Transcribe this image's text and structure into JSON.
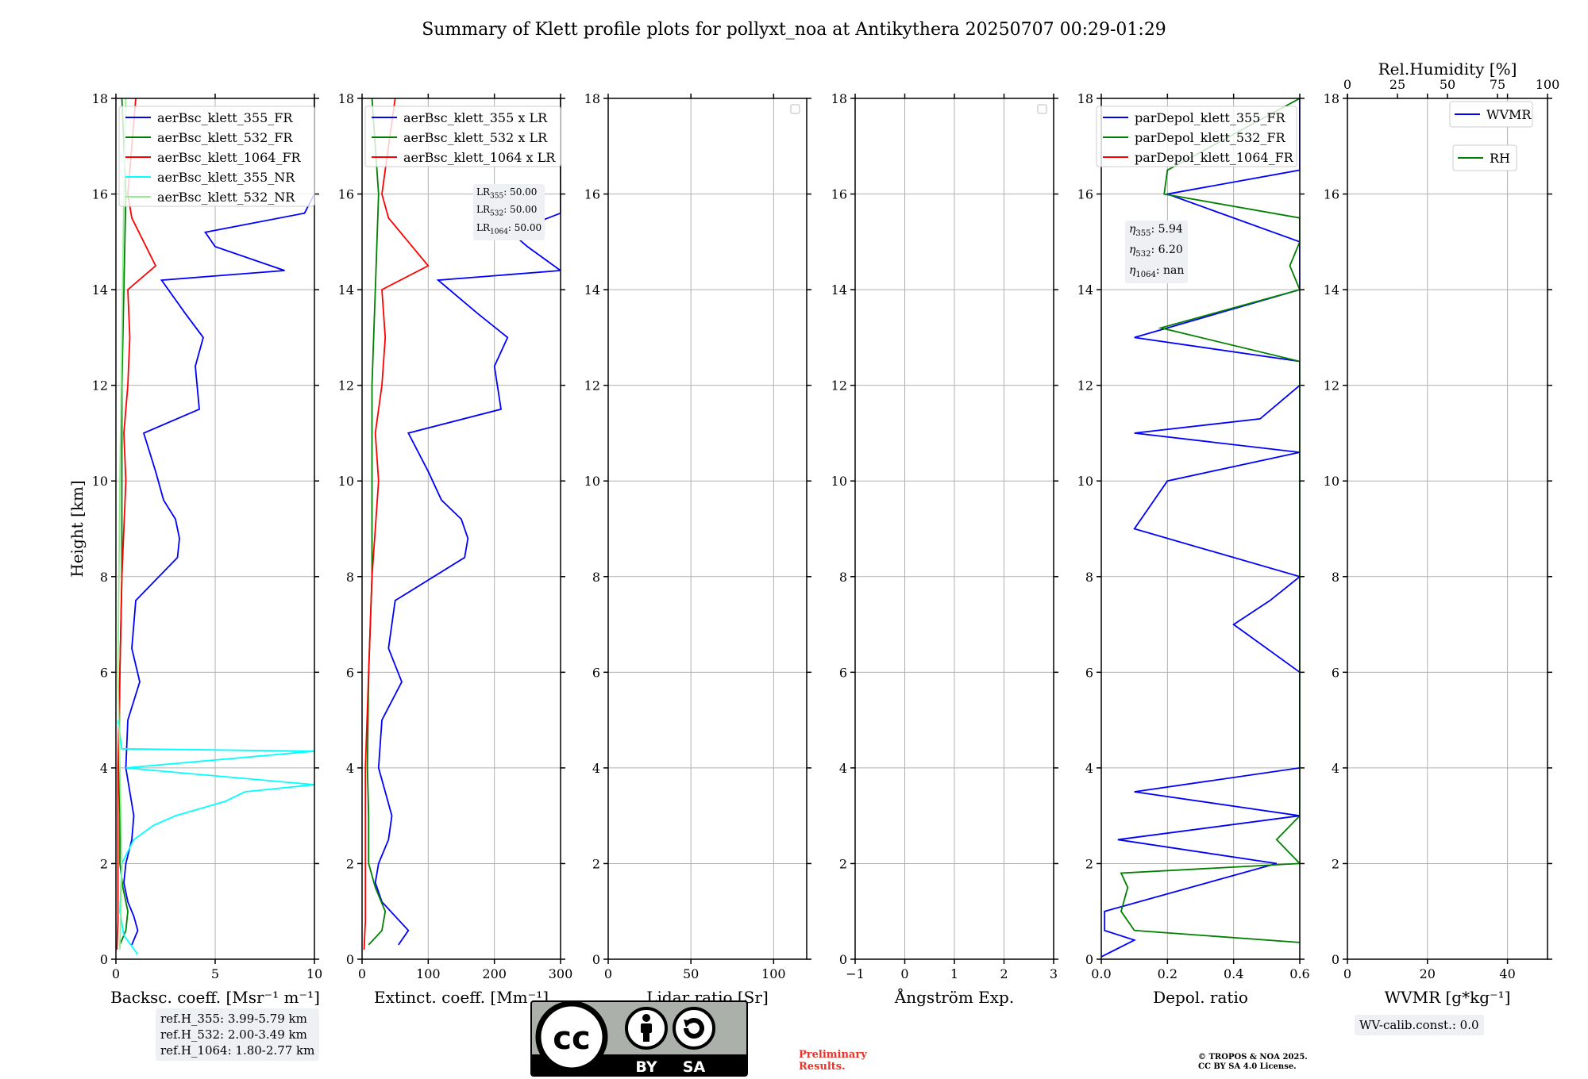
{
  "title": "Summary of Klett profile plots for pollyxt_noa at Antikythera 20250707 00:29-01:29",
  "colors": {
    "blue": "#0000ff",
    "green": "#008000",
    "red": "#ff0000",
    "cyan": "#00ffff",
    "lightgreen": "#90ee90",
    "pink": "#ffc0cb",
    "grid": "#b0b0b0"
  },
  "ref_heights": [
    "ref.H_355: 3.99-5.79 km",
    "ref.H_532: 2.00-3.49 km",
    "ref.H_1064: 1.80-2.77 km"
  ],
  "lr_box": {
    "lines": [
      {
        "sub": "355",
        "val": ": 50.00"
      },
      {
        "sub": "532",
        "val": ": 50.00"
      },
      {
        "sub": "1064",
        "val": ": 50.00"
      }
    ]
  },
  "eta_box": {
    "lines": [
      {
        "sub": "355",
        "val": ": 5.94"
      },
      {
        "sub": "532",
        "val": ": 6.20"
      },
      {
        "sub": "1064",
        "val": ": nan"
      }
    ]
  },
  "wv_calib": "WV-calib.const.: 0.0",
  "preliminary": [
    "Preliminary",
    "Results."
  ],
  "copyright": [
    "© TROPOS & NOA 2025.",
    "CC BY SA 4.0 License."
  ],
  "license_badge": {
    "icon": "cc-by-sa-icon",
    "text_by": "BY",
    "text_sa": "SA",
    "text_cc": "cc"
  },
  "chart_data": [
    {
      "type": "line",
      "id": "backscatter",
      "xlabel": "Backsc. coeff. [Msr⁻¹ m⁻¹]",
      "ylabel": "Height [km]",
      "xlim": [
        0,
        10
      ],
      "ylim": [
        0,
        18
      ],
      "xticks": [
        "0",
        "5",
        "10"
      ],
      "yticks": [
        "0",
        "2",
        "4",
        "6",
        "8",
        "10",
        "12",
        "14",
        "16",
        "18"
      ],
      "grid": true,
      "legend_position": "top-right",
      "series": [
        {
          "name": "aerBsc_klett_355_FR",
          "color": "#0000ff",
          "y": [
            0.3,
            0.6,
            0.9,
            1.2,
            1.6,
            2.0,
            2.5,
            3.0,
            3.5,
            4.0,
            5.0,
            5.8,
            6.5,
            7.5,
            8.4,
            8.8,
            9.2,
            9.6,
            10.2,
            11.0,
            11.5,
            12.4,
            13.0,
            13.5,
            14.2,
            14.4,
            14.9,
            15.2,
            15.6,
            16.0,
            17.0,
            18.0
          ],
          "x": [
            0.8,
            1.1,
            0.9,
            0.6,
            0.4,
            0.5,
            0.8,
            0.9,
            0.7,
            0.5,
            0.6,
            1.2,
            0.8,
            1.0,
            3.1,
            3.2,
            3.0,
            2.4,
            2.0,
            1.4,
            4.2,
            4.0,
            4.4,
            3.5,
            2.3,
            8.5,
            5.0,
            4.5,
            9.5,
            10.0,
            10.0,
            10.0
          ]
        },
        {
          "name": "aerBsc_klett_532_FR",
          "color": "#008000",
          "y": [
            0.3,
            0.6,
            1.0,
            1.5,
            2.0,
            3.0,
            4.0,
            6.0,
            8.0,
            10.0,
            12.0,
            14.0,
            16.0,
            18.0
          ],
          "x": [
            0.2,
            0.5,
            0.6,
            0.35,
            0.2,
            0.2,
            0.15,
            0.2,
            0.3,
            0.3,
            0.3,
            0.4,
            0.5,
            0.3
          ]
        },
        {
          "name": "aerBsc_klett_1064_FR",
          "color": "#ff0000",
          "y": [
            0.2,
            0.8,
            2.0,
            4.0,
            6.0,
            8.0,
            9.0,
            10.0,
            11.0,
            12.0,
            13.0,
            14.0,
            14.5,
            15.5,
            16.0,
            17.0,
            18.0
          ],
          "x": [
            0.05,
            0.1,
            0.1,
            0.1,
            0.2,
            0.3,
            0.4,
            0.5,
            0.4,
            0.6,
            0.7,
            0.6,
            2.0,
            0.8,
            0.6,
            0.8,
            1.0
          ]
        },
        {
          "name": "aerBsc_klett_355_NR",
          "color": "#00ffff",
          "y": [
            0.1,
            0.5,
            1.0,
            2.0,
            2.5,
            2.8,
            3.0,
            3.3,
            3.5,
            3.65,
            4.0,
            4.35,
            4.4,
            5.0
          ],
          "x": [
            1.1,
            0.4,
            0.2,
            0.3,
            0.9,
            1.9,
            3.0,
            5.5,
            6.5,
            10.0,
            0.5,
            10.0,
            0.3,
            0.1
          ]
        },
        {
          "name": "aerBsc_klett_532_NR",
          "color": "#90ee90",
          "y": [
            0.2,
            2.0,
            4.0,
            6.0,
            10.0,
            16.0,
            18.0
          ],
          "x": [
            0.2,
            0.3,
            0.2,
            0.1,
            0.2,
            0.4,
            0.5
          ]
        }
      ]
    },
    {
      "type": "line",
      "id": "extinction",
      "xlabel": "Extinct. coeff. [Mm⁻¹]",
      "xlim": [
        0,
        300
      ],
      "ylim": [
        0,
        18
      ],
      "xticks": [
        "0",
        "100",
        "200",
        "300"
      ],
      "yticks": [
        "0",
        "2",
        "4",
        "6",
        "8",
        "10",
        "12",
        "14",
        "16",
        "18"
      ],
      "grid": true,
      "legend_position": "top-right",
      "series": [
        {
          "name": "aerBsc_klett_355 x LR",
          "color": "#0000ff",
          "y": [
            0.3,
            0.6,
            0.9,
            1.2,
            1.6,
            2.0,
            2.5,
            3.0,
            3.5,
            4.0,
            5.0,
            5.8,
            6.5,
            7.5,
            8.4,
            8.8,
            9.2,
            9.6,
            10.2,
            11.0,
            11.5,
            12.4,
            13.0,
            13.5,
            14.2,
            14.4,
            14.9,
            15.2,
            15.6,
            16.0,
            17.0,
            18.0
          ],
          "x": [
            55,
            70,
            50,
            30,
            20,
            25,
            40,
            45,
            35,
            25,
            30,
            60,
            40,
            50,
            155,
            160,
            150,
            120,
            100,
            70,
            210,
            200,
            220,
            175,
            115,
            300,
            250,
            225,
            300,
            300,
            300,
            300
          ]
        },
        {
          "name": "aerBsc_klett_532 x LR",
          "color": "#008000",
          "y": [
            0.3,
            0.6,
            1.0,
            1.5,
            2.0,
            3.0,
            4.0,
            6.0,
            8.0,
            10.0,
            12.0,
            14.0,
            16.0,
            18.0
          ],
          "x": [
            10,
            30,
            35,
            20,
            10,
            10,
            8,
            10,
            15,
            15,
            15,
            20,
            25,
            15
          ]
        },
        {
          "name": "aerBsc_klett_1064 x LR",
          "color": "#ff0000",
          "y": [
            0.2,
            0.8,
            2.0,
            4.0,
            6.0,
            8.0,
            9.0,
            10.0,
            11.0,
            12.0,
            13.0,
            14.0,
            14.5,
            15.5,
            16.0,
            17.0,
            18.0
          ],
          "x": [
            3,
            5,
            5,
            5,
            10,
            15,
            20,
            25,
            20,
            30,
            35,
            30,
            100,
            40,
            30,
            40,
            50
          ]
        }
      ]
    },
    {
      "type": "line",
      "id": "lidar-ratio",
      "xlabel": "Lidar ratio [Sr]",
      "xlim": [
        0,
        120
      ],
      "ylim": [
        0,
        18
      ],
      "xticks": [
        "0",
        "50",
        "100"
      ],
      "yticks": [
        "0",
        "2",
        "4",
        "6",
        "8",
        "10",
        "12",
        "14",
        "16",
        "18"
      ],
      "grid": true,
      "series": []
    },
    {
      "type": "line",
      "id": "angstrom",
      "xlabel": "Ångström Exp.",
      "xlim": [
        -1,
        3
      ],
      "ylim": [
        0,
        18
      ],
      "xticks": [
        "−1",
        "0",
        "1",
        "2",
        "3"
      ],
      "yticks": [
        "0",
        "2",
        "4",
        "6",
        "8",
        "10",
        "12",
        "14",
        "16",
        "18"
      ],
      "grid": true,
      "series": []
    },
    {
      "type": "line",
      "id": "depol",
      "xlabel": "Depol. ratio",
      "xlim": [
        0,
        0.6
      ],
      "ylim": [
        0,
        18
      ],
      "xticks": [
        "0.0",
        "0.2",
        "0.4",
        "0.6"
      ],
      "yticks": [
        "0",
        "2",
        "4",
        "6",
        "8",
        "10",
        "12",
        "14",
        "16",
        "18"
      ],
      "grid": true,
      "legend_position": "top-right",
      "series": [
        {
          "name": "parDepol_klett_355_FR",
          "color": "#0000ff",
          "y": [
            0.05,
            0.4,
            0.6,
            1.0,
            2.0,
            2.5,
            3.0,
            3.5,
            4.0,
            5.0,
            6.0,
            7.0,
            7.5,
            8.0,
            9.0,
            10.0,
            10.6,
            11.0,
            11.3,
            12.0,
            12.5,
            13.0,
            14.0,
            15.0,
            16.0,
            16.5,
            17.0,
            18.0
          ],
          "x": [
            0.0,
            0.1,
            0.01,
            0.01,
            0.53,
            0.05,
            0.6,
            0.1,
            0.6,
            0.6,
            0.6,
            0.4,
            0.51,
            0.6,
            0.1,
            0.2,
            0.6,
            0.1,
            0.48,
            0.6,
            0.6,
            0.1,
            0.6,
            0.6,
            0.2,
            0.6,
            0.6,
            0.6
          ]
        },
        {
          "name": "parDepol_klett_532_FR",
          "color": "#008000",
          "y": [
            0.35,
            0.6,
            1.0,
            1.5,
            1.8,
            2.0,
            2.5,
            3.0,
            3.5,
            4.0,
            4.5,
            5.0,
            6.0,
            7.0,
            8.0,
            9.0,
            9.5,
            10.0,
            11.0,
            12.0,
            12.5,
            13.2,
            14.0,
            14.5,
            15.0,
            15.5,
            16.0,
            16.5,
            18.0
          ],
          "x": [
            0.6,
            0.1,
            0.06,
            0.08,
            0.06,
            0.6,
            0.53,
            0.6,
            0.6,
            0.6,
            0.6,
            0.6,
            0.6,
            0.6,
            0.6,
            0.6,
            0.6,
            0.6,
            0.6,
            0.6,
            0.6,
            0.18,
            0.6,
            0.57,
            0.6,
            0.6,
            0.19,
            0.2,
            0.6
          ]
        },
        {
          "name": "parDepol_klett_1064_FR",
          "color": "#ff0000",
          "y": [],
          "x": []
        }
      ]
    },
    {
      "type": "line",
      "id": "wvmr",
      "xlabel": "WVMR [g*kg⁻¹]",
      "xlabel_top": "Rel.Humidity [%]",
      "xlim": [
        0,
        50
      ],
      "xlim_top": [
        0,
        100
      ],
      "ylim": [
        0,
        18
      ],
      "xticks": [
        "0",
        "20",
        "40"
      ],
      "xticks_top": [
        "0",
        "25",
        "50",
        "75",
        "100"
      ],
      "yticks": [
        "0",
        "2",
        "4",
        "6",
        "8",
        "10",
        "12",
        "14",
        "16",
        "18"
      ],
      "grid": true,
      "legend_position": "top-right",
      "series": [
        {
          "name": "WVMR",
          "color": "#0000ff",
          "y": [],
          "x": []
        },
        {
          "name": "RH",
          "color": "#008000",
          "y": [],
          "x": []
        }
      ]
    }
  ]
}
